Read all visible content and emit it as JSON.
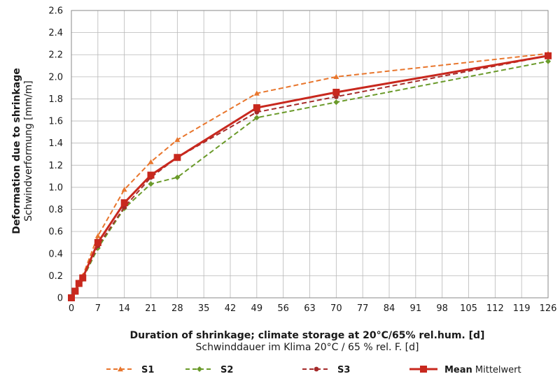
{
  "chart_data": {
    "type": "line",
    "xlabel": "Duration of shrinkage; climate storage at 20°C/65% rel.hum. [d]",
    "xlabel_sub": "Schwinddauer im Klima 20°C / 65 % rel. F. [d]",
    "ylabel": "Deformation due to shrinkage",
    "ylabel_sub": "Schwindverformung [mm/m]",
    "xlim": [
      0,
      126
    ],
    "ylim": [
      0,
      2.6
    ],
    "x_ticks": [
      0,
      7,
      14,
      21,
      28,
      35,
      42,
      49,
      56,
      63,
      70,
      77,
      84,
      91,
      98,
      105,
      112,
      119,
      126
    ],
    "y_ticks": [
      "0",
      "0.2",
      "0.4",
      "0.6",
      "0.8",
      "1.0",
      "1.2",
      "1.4",
      "1.6",
      "1.8",
      "2.0",
      "2.2",
      "2.4",
      "2.6"
    ],
    "grid": true,
    "legend_position": "bottom",
    "series": [
      {
        "name": "S1",
        "legend_label": "S1",
        "legend_sub": "",
        "color": "#e8762d",
        "dash": "dashed",
        "marker": "triangle",
        "x": [
          0,
          1,
          2,
          3,
          7,
          14,
          21,
          28,
          49,
          70,
          126
        ],
        "y": [
          0,
          0.07,
          0.14,
          0.2,
          0.56,
          0.98,
          1.23,
          1.43,
          1.85,
          2.0,
          2.21
        ]
      },
      {
        "name": "S2",
        "legend_label": "S2",
        "legend_sub": "",
        "color": "#6a9a2a",
        "dash": "dashed",
        "marker": "diamond",
        "x": [
          0,
          1,
          2,
          3,
          7,
          14,
          21,
          28,
          49,
          70,
          126
        ],
        "y": [
          0,
          0.06,
          0.12,
          0.17,
          0.45,
          0.81,
          1.03,
          1.09,
          1.63,
          1.77,
          2.14
        ]
      },
      {
        "name": "S3",
        "legend_label": "S3",
        "legend_sub": "",
        "color": "#a52a2a",
        "dash": "dashed",
        "marker": "circle",
        "x": [
          0,
          1,
          2,
          3,
          7,
          14,
          21,
          28,
          49,
          70,
          126
        ],
        "y": [
          0,
          0.06,
          0.12,
          0.18,
          0.47,
          0.82,
          1.09,
          1.27,
          1.68,
          1.82,
          2.19
        ]
      },
      {
        "name": "Mean",
        "legend_label": "Mean",
        "legend_sub": "Mittelwert",
        "color": "#c8281e",
        "dash": "solid",
        "marker": "square",
        "x": [
          0,
          1,
          2,
          3,
          7,
          14,
          21,
          28,
          49,
          70,
          126
        ],
        "y": [
          0,
          0.06,
          0.13,
          0.18,
          0.5,
          0.86,
          1.11,
          1.27,
          1.72,
          1.86,
          2.19
        ]
      }
    ]
  }
}
